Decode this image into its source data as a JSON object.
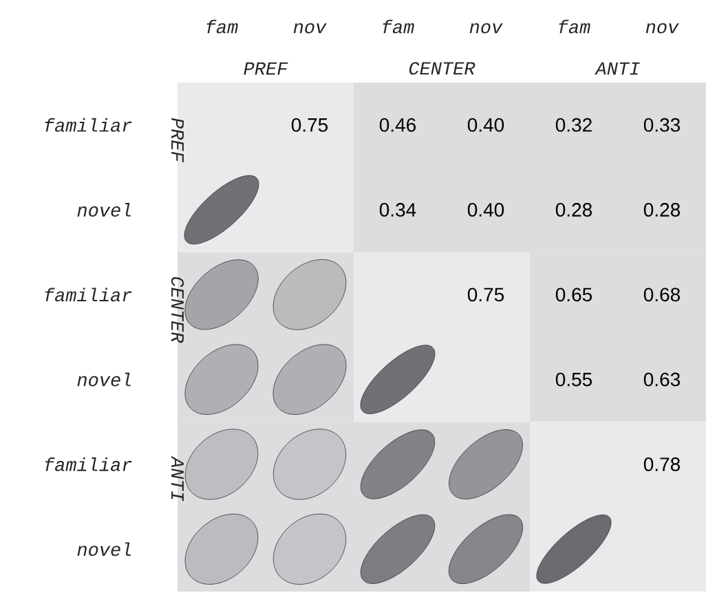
{
  "chart_data": {
    "type": "heatmap",
    "categories": [
      "fam",
      "nov",
      "fam",
      "nov",
      "fam",
      "nov"
    ],
    "y_categories": [
      "familiar",
      "novel",
      "familiar",
      "novel",
      "familiar",
      "novel"
    ],
    "annotations": [
      "PREF",
      "CENTER",
      "ANTI",
      "PREF",
      "CENTER",
      "ANTI"
    ],
    "cells": [
      [
        null,
        0.75,
        0.46,
        0.4,
        0.32,
        0.33
      ],
      [
        null,
        null,
        0.34,
        0.4,
        0.28,
        0.28
      ],
      [
        null,
        null,
        null,
        0.75,
        0.65,
        0.68
      ],
      [
        null,
        null,
        null,
        null,
        0.55,
        0.63
      ],
      [
        null,
        null,
        null,
        null,
        null,
        0.78
      ],
      [
        null,
        null,
        null,
        null,
        null,
        null
      ]
    ],
    "cell_labels": [
      [
        null,
        "0.75",
        "0.46",
        "0.40",
        "0.32",
        "0.33"
      ],
      [
        null,
        null,
        "0.34",
        "0.40",
        "0.28",
        "0.28"
      ],
      [
        null,
        null,
        null,
        "0.75",
        "0.65",
        "0.68"
      ],
      [
        null,
        null,
        null,
        null,
        "0.55",
        "0.63"
      ],
      [
        null,
        null,
        null,
        null,
        null,
        "0.78"
      ],
      [
        null,
        null,
        null,
        null,
        null,
        null
      ]
    ]
  }
}
